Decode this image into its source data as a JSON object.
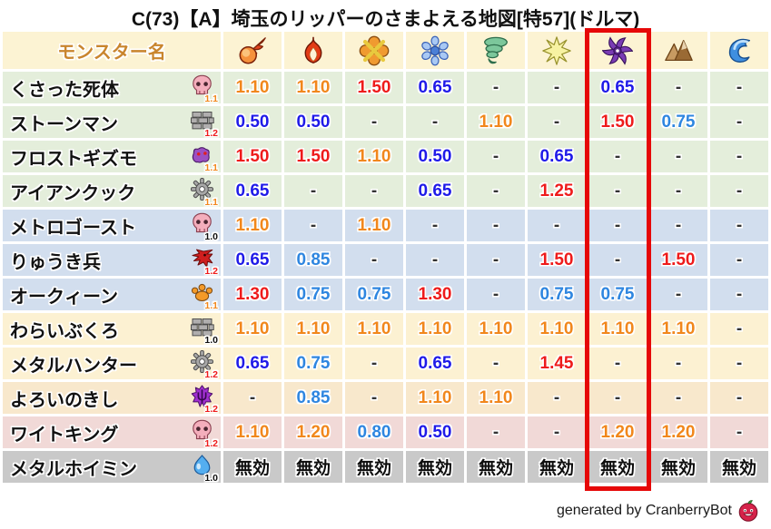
{
  "title": "C(73)【A】埼玉のリッパーのさまよえる地図[特57](ドルマ)",
  "table": {
    "name_header": "モンスター名",
    "element_columns": [
      {
        "icon": "fireball-icon"
      },
      {
        "icon": "flame-icon"
      },
      {
        "icon": "explosion-icon"
      },
      {
        "icon": "snowflake-icon"
      },
      {
        "icon": "tornado-icon"
      },
      {
        "icon": "star-icon"
      },
      {
        "icon": "dark-pinwheel-icon",
        "highlighted": true
      },
      {
        "icon": "mountain-icon"
      },
      {
        "icon": "wave-icon"
      }
    ],
    "rows": [
      {
        "name": "くさった死体",
        "icon": "skull-icon",
        "badge": "1.1",
        "badge_color": "#f1871c",
        "bg": "#e4eedb",
        "values": [
          "1.10",
          "1.10",
          "1.50",
          "0.65",
          "-",
          "-",
          "0.65",
          "-",
          "-"
        ]
      },
      {
        "name": "ストーンマン",
        "icon": "brick-icon",
        "badge": "1.2",
        "badge_color": "#ee1b1b",
        "bg": "#e4eedb",
        "values": [
          "0.50",
          "0.50",
          "-",
          "-",
          "1.10",
          "-",
          "1.50",
          "0.75",
          "-"
        ]
      },
      {
        "name": "フロストギズモ",
        "icon": "gizmo-icon",
        "badge": "1.1",
        "badge_color": "#f1871c",
        "bg": "#e4eedb",
        "values": [
          "1.50",
          "1.50",
          "1.10",
          "0.50",
          "-",
          "0.65",
          "-",
          "-",
          "-"
        ]
      },
      {
        "name": "アイアンクック",
        "icon": "gear-icon",
        "badge": "1.1",
        "badge_color": "#f1871c",
        "bg": "#e4eedb",
        "values": [
          "0.65",
          "-",
          "-",
          "0.65",
          "-",
          "1.25",
          "-",
          "-",
          "-"
        ]
      },
      {
        "name": "メトロゴースト",
        "icon": "skull-icon",
        "badge": "1.0",
        "badge_color": "#101010",
        "bg": "#d2deee",
        "values": [
          "1.10",
          "-",
          "1.10",
          "-",
          "-",
          "-",
          "-",
          "-",
          "-"
        ]
      },
      {
        "name": "りゅうき兵",
        "icon": "dragon-icon",
        "badge": "1.2",
        "badge_color": "#ee1b1b",
        "bg": "#d2deee",
        "values": [
          "0.65",
          "0.85",
          "-",
          "-",
          "-",
          "1.50",
          "-",
          "1.50",
          "-"
        ]
      },
      {
        "name": "オークィーン",
        "icon": "paw-icon",
        "badge": "1.1",
        "badge_color": "#f1871c",
        "bg": "#d2deee",
        "values": [
          "1.30",
          "0.75",
          "0.75",
          "1.30",
          "-",
          "0.75",
          "0.75",
          "-",
          "-"
        ]
      },
      {
        "name": "わらいぶくろ",
        "icon": "brick-icon",
        "badge": "1.0",
        "badge_color": "#101010",
        "bg": "#fcf1d2",
        "values": [
          "1.10",
          "1.10",
          "1.10",
          "1.10",
          "1.10",
          "1.10",
          "1.10",
          "1.10",
          "-"
        ]
      },
      {
        "name": "メタルハンター",
        "icon": "gear-icon",
        "badge": "1.2",
        "badge_color": "#ee1b1b",
        "bg": "#fcf1d2",
        "values": [
          "0.65",
          "0.75",
          "-",
          "0.65",
          "-",
          "1.45",
          "-",
          "-",
          "-"
        ]
      },
      {
        "name": "よろいのきし",
        "icon": "trident-icon",
        "badge": "1.2",
        "badge_color": "#ee1b1b",
        "bg": "#f8e8cc",
        "values": [
          "-",
          "0.85",
          "-",
          "1.10",
          "1.10",
          "-",
          "-",
          "-",
          "-"
        ]
      },
      {
        "name": "ワイトキング",
        "icon": "skull-icon",
        "badge": "1.2",
        "badge_color": "#ee1b1b",
        "bg": "#f1d9d7",
        "values": [
          "1.10",
          "1.20",
          "0.80",
          "0.50",
          "-",
          "-",
          "1.20",
          "1.20",
          "-"
        ]
      },
      {
        "name": "メタルホイミン",
        "icon": "slime-icon",
        "badge": "1.0",
        "badge_color": "#101010",
        "bg": "#c9c9c9",
        "values": [
          "無効",
          "無効",
          "無効",
          "無効",
          "無効",
          "無効",
          "無効",
          "無効",
          "無効"
        ]
      }
    ]
  },
  "palette": {
    "header_bg": "#fcf3d3",
    "header_text": "#c9852d",
    "strong_resist": "#1f1ae8",
    "resist": "#2e86e0",
    "weak": "#f1871c",
    "strong_weak": "#ee1b1b",
    "neutral": "#333333",
    "immune": "#0d0d0d",
    "highlight_box": "#e60808"
  },
  "footer": {
    "credit": "generated by CranberryBot",
    "icon": "cranberry-icon"
  },
  "chart_data": {
    "type": "table",
    "title": "C(73)【A】埼玉のリッパーのさまよえる地図[特57](ドルマ)",
    "row_header": "モンスター名",
    "columns": [
      "fireball",
      "flame",
      "explosion",
      "snowflake",
      "tornado",
      "star",
      "dark-pinwheel",
      "mountain",
      "wave"
    ],
    "highlighted_column": "dark-pinwheel",
    "rows": [
      {
        "name": "くさった死体",
        "level": "1.1",
        "values": [
          "1.10",
          "1.10",
          "1.50",
          "0.65",
          "-",
          "-",
          "0.65",
          "-",
          "-"
        ]
      },
      {
        "name": "ストーンマン",
        "level": "1.2",
        "values": [
          "0.50",
          "0.50",
          "-",
          "-",
          "1.10",
          "-",
          "1.50",
          "0.75",
          "-"
        ]
      },
      {
        "name": "フロストギズモ",
        "level": "1.1",
        "values": [
          "1.50",
          "1.50",
          "1.10",
          "0.50",
          "-",
          "0.65",
          "-",
          "-",
          "-"
        ]
      },
      {
        "name": "アイアンクック",
        "level": "1.1",
        "values": [
          "0.65",
          "-",
          "-",
          "0.65",
          "-",
          "1.25",
          "-",
          "-",
          "-"
        ]
      },
      {
        "name": "メトロゴースト",
        "level": "1.0",
        "values": [
          "1.10",
          "-",
          "1.10",
          "-",
          "-",
          "-",
          "-",
          "-",
          "-"
        ]
      },
      {
        "name": "りゅうき兵",
        "level": "1.2",
        "values": [
          "0.65",
          "0.85",
          "-",
          "-",
          "-",
          "1.50",
          "-",
          "1.50",
          "-"
        ]
      },
      {
        "name": "オークィーン",
        "level": "1.1",
        "values": [
          "1.30",
          "0.75",
          "0.75",
          "1.30",
          "-",
          "0.75",
          "0.75",
          "-",
          "-"
        ]
      },
      {
        "name": "わらいぶくろ",
        "level": "1.0",
        "values": [
          "1.10",
          "1.10",
          "1.10",
          "1.10",
          "1.10",
          "1.10",
          "1.10",
          "1.10",
          "-"
        ]
      },
      {
        "name": "メタルハンター",
        "level": "1.2",
        "values": [
          "0.65",
          "0.75",
          "-",
          "0.65",
          "-",
          "1.45",
          "-",
          "-",
          "-"
        ]
      },
      {
        "name": "よろいのきし",
        "level": "1.2",
        "values": [
          "-",
          "0.85",
          "-",
          "1.10",
          "1.10",
          "-",
          "-",
          "-",
          "-"
        ]
      },
      {
        "name": "ワイトキング",
        "level": "1.2",
        "values": [
          "1.10",
          "1.20",
          "0.80",
          "0.50",
          "-",
          "-",
          "1.20",
          "1.20",
          "-"
        ]
      },
      {
        "name": "メタルホイミン",
        "level": "1.0",
        "values": [
          "無効",
          "無効",
          "無効",
          "無効",
          "無効",
          "無効",
          "無効",
          "無効",
          "無効"
        ]
      }
    ]
  }
}
